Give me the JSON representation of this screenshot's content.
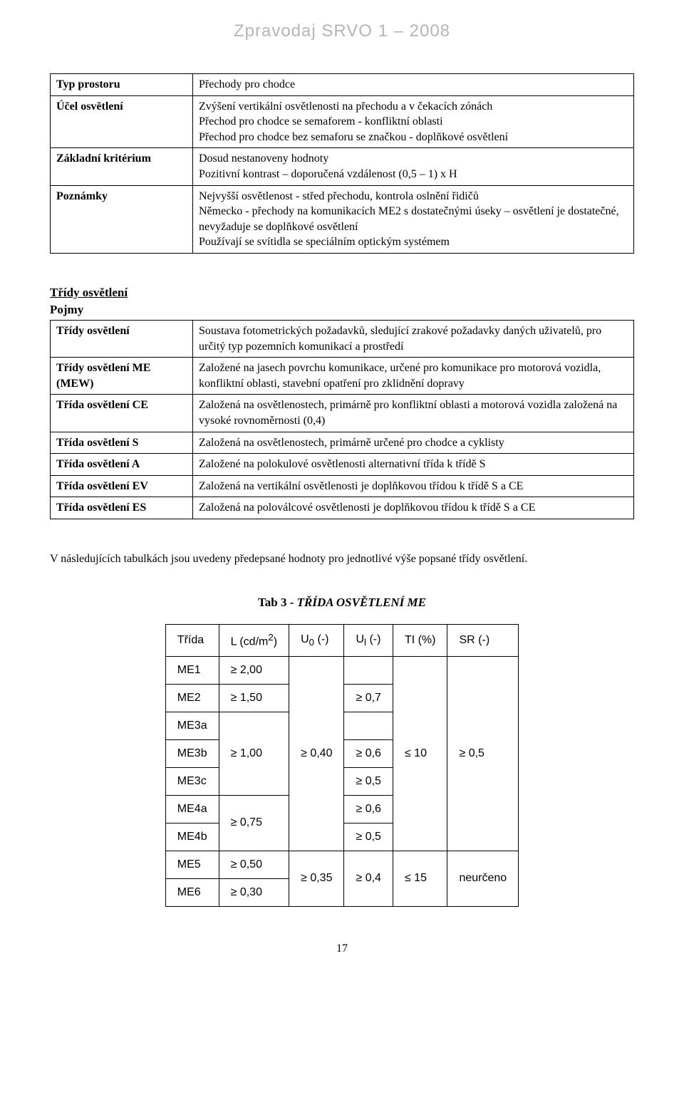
{
  "header": "Zpravodaj SRVO 1 – 2008",
  "table1": {
    "rows": [
      {
        "label": "Typ prostoru",
        "value": "Přechody pro chodce"
      },
      {
        "label": "Účel osvětlení",
        "value": "Zvýšení vertikální osvětlenosti na přechodu a v čekacích zónách\nPřechod pro chodce se semaforem - konfliktní oblasti\nPřechod pro chodce bez semaforu se značkou - doplňkové osvětlení"
      },
      {
        "label": "Základní kritérium",
        "value": "Dosud nestanoveny hodnoty\nPozitivní kontrast – doporučená vzdálenost (0,5 – 1) x H"
      },
      {
        "label": "Poznámky",
        "value": "Nejvyšší osvětlenost - střed přechodu, kontrola oslnění řidičů\nNěmecko - přechody na komunikacích ME2 s dostatečnými úseky – osvětlení je dostatečné, nevyžaduje se doplňkové osvětlení\nPoužívají se svítidla se speciálním optickým systémem"
      }
    ]
  },
  "section2": {
    "heading": "Třídy osvětlení",
    "subheading": "Pojmy",
    "rows": [
      {
        "label": "Třídy osvětlení",
        "value": "Soustava fotometrických požadavků, sledující zrakové požadavky daných uživatelů, pro určitý typ pozemních komunikací a prostředí"
      },
      {
        "label": "Třídy osvětlení ME (MEW)",
        "value": "Založené na jasech povrchu komunikace, určené pro komunikace pro motorová vozidla, konfliktní oblasti, stavební opatření pro zklidnění dopravy"
      },
      {
        "label": "Třída osvětlení CE",
        "value": "Založená na osvětlenostech, primárně pro konfliktní oblasti a motorová vozidla založená na vysoké rovnoměrnosti (0,4)"
      },
      {
        "label": "Třída osvětlení S",
        "value": "Založená na osvětlenostech, primárně určené pro chodce a cyklisty"
      },
      {
        "label": "Třída osvětlení A",
        "value": "Založené na polokulové osvětlenosti alternativní třída k třídě S"
      },
      {
        "label": "Třída osvětlení EV",
        "value": "Založená na vertikální osvětlenosti je doplňkovou třídou k třídě S a CE"
      },
      {
        "label": "Třída osvětlení ES",
        "value": "Založená na poloválcové osvětlenosti je doplňkovou třídou k třídě S a CE"
      }
    ]
  },
  "paragraph": "V následujících tabulkách jsou uvedeny předepsané hodnoty pro jednotlivé výše popsané třídy osvětlení.",
  "caption": {
    "prefix": "Tab 3 - ",
    "italic": "TŘÍDA OSVĚTLENÍ ME"
  },
  "me_table": {
    "headers": [
      "Třída",
      "L (cd/m2)",
      "U0 (-)",
      "Ul (-)",
      "TI (%)",
      "SR (-)"
    ],
    "rows": [
      {
        "trida": "ME1",
        "L": "≥ 2,00",
        "U0": "",
        "Ul": "",
        "TI": "",
        "SR": ""
      },
      {
        "trida": "ME2",
        "L": "≥ 1,50",
        "U0": "",
        "Ul": "≥ 0,7",
        "TI": "",
        "SR": ""
      },
      {
        "trida": "ME3a",
        "L": "",
        "U0": "",
        "Ul": "",
        "TI": "",
        "SR": ""
      },
      {
        "trida": "ME3b",
        "L": "≥ 1,00",
        "U0": "≥ 0,40",
        "Ul": "≥ 0,6",
        "TI": "≤ 10",
        "SR": "≥ 0,5"
      },
      {
        "trida": "ME3c",
        "L": "",
        "U0": "",
        "Ul": "≥ 0,5",
        "TI": "",
        "SR": ""
      },
      {
        "trida": "ME4a",
        "L": "",
        "U0": "",
        "Ul": "≥ 0,6",
        "TI": "",
        "SR": ""
      },
      {
        "trida": "ME4b",
        "L": "≥ 0,75",
        "U0": "",
        "Ul": "≥ 0,5",
        "TI": "",
        "SR": ""
      },
      {
        "trida": "ME5",
        "L": "≥ 0,50",
        "U0": "",
        "Ul": "",
        "TI": "",
        "SR": ""
      },
      {
        "trida": "ME6",
        "L": "≥ 0,30",
        "U0": "≥ 0,35",
        "Ul": "≥ 0,4",
        "TI": "≤ 15",
        "SR": "neurčeno"
      }
    ]
  },
  "page_number": "17"
}
